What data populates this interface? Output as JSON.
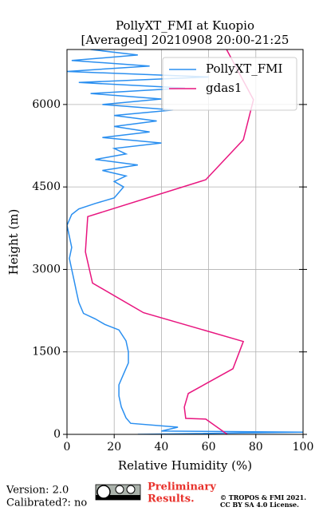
{
  "chart_data": {
    "type": "line",
    "title": "PollyXT_FMI at Kuopio",
    "subtitle": "[Averaged] 20210908 20:00-21:25",
    "x_label": "Relative Humidity (%)",
    "y_label": "Height (m)",
    "xlim": [
      0,
      100
    ],
    "xticks": [
      0,
      20,
      40,
      60,
      80,
      100
    ],
    "ylim": [
      0,
      7000
    ],
    "yticks": [
      0,
      1500,
      3000,
      4500,
      6000
    ],
    "grid": true,
    "legend": "upper right",
    "series": [
      {
        "name": "PollyXT_FMI",
        "color": "#2a8ff0",
        "x": [
          30,
          100,
          40,
          47,
          27,
          25,
          23,
          22,
          22,
          24,
          26,
          26,
          25,
          22,
          16,
          12,
          7,
          5,
          4,
          3,
          2,
          1,
          2,
          1,
          0,
          2,
          5,
          12,
          20,
          22,
          24,
          20,
          25,
          15,
          30,
          12,
          25,
          20,
          40,
          15,
          35,
          20,
          38,
          20,
          45,
          15,
          40,
          10,
          50,
          5,
          60,
          0,
          35,
          2,
          30,
          10
        ],
        "y": [
          0,
          40,
          60,
          130,
          200,
          300,
          500,
          700,
          900,
          1100,
          1300,
          1500,
          1700,
          1900,
          2000,
          2100,
          2200,
          2400,
          2600,
          2800,
          3000,
          3200,
          3400,
          3600,
          3800,
          4000,
          4100,
          4200,
          4300,
          4400,
          4500,
          4600,
          4700,
          4800,
          4900,
          5000,
          5100,
          5200,
          5300,
          5400,
          5500,
          5600,
          5700,
          5800,
          5900,
          6000,
          6100,
          6200,
          6300,
          6400,
          6500,
          6600,
          6700,
          6800,
          6900,
          7000
        ]
      },
      {
        "name": "gdas1",
        "color": "#e8157f",
        "x": [
          67.9,
          58.8,
          50.3,
          49.7,
          51.4,
          70.3,
          74.7,
          32.4,
          10.8,
          7.8,
          8.8,
          58.8,
          74.7,
          79,
          67.6
        ],
        "y": [
          0,
          277,
          291,
          495,
          743,
          1194,
          1689,
          2213,
          2752,
          3320,
          3961,
          4631,
          5359,
          6087,
          7000
        ]
      }
    ]
  },
  "footer": {
    "version": "Version: 2.0",
    "calibrated": "Calibrated?: no",
    "preliminary": [
      "Preliminary",
      "Results."
    ],
    "license": [
      "© TROPOS & FMI 2021.",
      "CC BY SA 4.0 License."
    ]
  }
}
